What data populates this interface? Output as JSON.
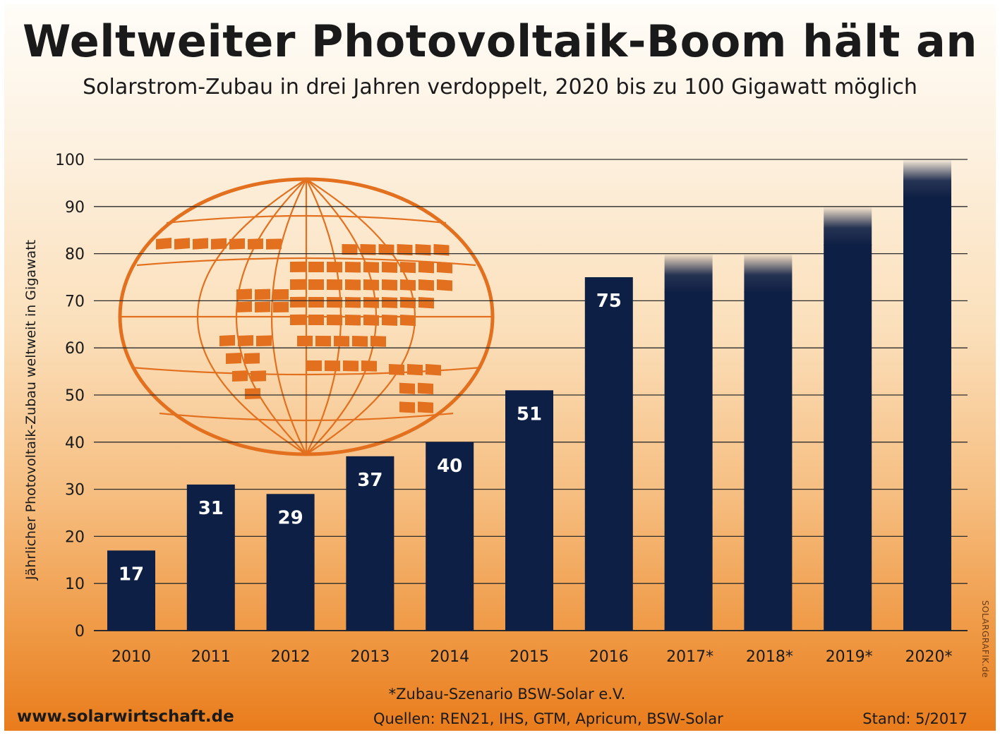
{
  "title": "Weltweiter Photovoltaik-Boom hält an",
  "subtitle": "Solarstrom-Zubau in drei Jahren verdoppelt, 2020 bis zu 100 Gigawatt möglich",
  "footnote": "*Zubau-Szenario BSW-Solar e.V.",
  "website": "www.solarwirtschaft.de",
  "sources": "Quellen: REN21, IHS, GTM, Apricum, BSW-Solar",
  "stand": "Stand: 5/2017",
  "credit": "SOLARGRAFIK.de",
  "colors": {
    "bar": "#0e1f45",
    "bar_label": "#ffffff",
    "globe": "#e2701e",
    "grid": "#2b2b2b"
  },
  "icon": "world-globe-solar-panels-icon",
  "chart_data": {
    "type": "bar",
    "title": "Weltweiter Photovoltaik-Boom hält an",
    "subtitle": "Solarstrom-Zubau in drei Jahren verdoppelt, 2020 bis zu 100 Gigawatt möglich",
    "xlabel": "",
    "ylabel": "Jährlicher Photovoltaik-Zubau weltweit in Gigawatt",
    "categories": [
      "2010",
      "2011",
      "2012",
      "2013",
      "2014",
      "2015",
      "2016",
      "2017*",
      "2018*",
      "2019*",
      "2020*"
    ],
    "values": [
      17,
      31,
      29,
      37,
      40,
      51,
      75,
      80,
      80,
      90,
      100
    ],
    "data_labels": [
      "17",
      "31",
      "29",
      "37",
      "40",
      "51",
      "75",
      "",
      "",
      "",
      ""
    ],
    "projected": [
      false,
      false,
      false,
      false,
      false,
      false,
      false,
      true,
      true,
      true,
      true
    ],
    "ylim": [
      0,
      100
    ],
    "yticks": [
      "0",
      "10",
      "20",
      "30",
      "40",
      "50",
      "60",
      "70",
      "80",
      "90",
      "100"
    ],
    "grid": true,
    "legend": "none"
  }
}
